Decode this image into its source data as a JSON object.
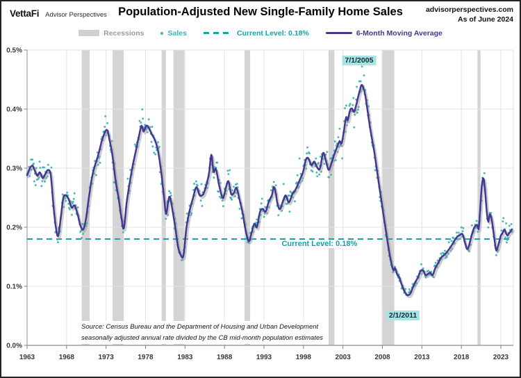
{
  "header": {
    "logo": "VettaFi",
    "logo_sub": "Advisor Perspectives",
    "title": "Population-Adjusted New Single-Family Home Sales",
    "site": "advisorperspectives.com",
    "as_of": "As of June 2024"
  },
  "legend": {
    "recessions": "Recessions",
    "sales": "Sales",
    "current_level": "Current Level: 0.18%",
    "moving_average": "6-Month Moving Average"
  },
  "source": {
    "line1": "Source: Census Bureau and the Department of Housing and Urban Development",
    "line2": "seasonally adjusted annual rate divided by the CB mid-month population estimates"
  },
  "colors": {
    "sales": "#3bb3b6",
    "moving_average": "#43378f",
    "moving_average_shadow": "#9e9e9e",
    "current_level": "#17a2a8",
    "recession": "#d4d4d4",
    "recession_label": "#9b9b9b",
    "grid": "#e3e3e3",
    "axis": "#9f9f9f",
    "tick": "#808080",
    "annotation_bg": "#a9e4e2",
    "annotation_text": "#0b2b3a"
  },
  "chart_data": {
    "type": "scatter",
    "title": "Population-Adjusted New Single-Family Home Sales",
    "xlabel": "",
    "ylabel": "",
    "x_ticks": [
      1963,
      1968,
      1973,
      1978,
      1983,
      1988,
      1993,
      1998,
      2003,
      2008,
      2013,
      2018,
      2023
    ],
    "y_ticks": [
      {
        "v": 0.5,
        "label": "0.5%"
      },
      {
        "v": 0.4,
        "label": "0.4%"
      },
      {
        "v": 0.3,
        "label": "0.3%"
      },
      {
        "v": 0.2,
        "label": "0.2%"
      },
      {
        "v": 0.1,
        "label": "0.1%"
      },
      {
        "v": 0.0,
        "label": "0.0%"
      }
    ],
    "xlim": [
      1963,
      2024.6
    ],
    "ylim_pct": [
      0,
      0.5
    ],
    "grid": true,
    "legend_position": "top",
    "current_level_pct": 0.18,
    "recessions_years": [
      [
        1969.92,
        1970.92
      ],
      [
        1973.83,
        1975.25
      ],
      [
        1980.04,
        1980.58
      ],
      [
        1981.54,
        1982.92
      ],
      [
        1990.54,
        1991.25
      ],
      [
        2001.17,
        2001.92
      ],
      [
        2007.92,
        2009.5
      ],
      [
        2020.04,
        2020.42
      ]
    ],
    "annotations": [
      {
        "label": "7/1/2005",
        "year": 2005.05,
        "value": 0.482
      },
      {
        "label": "2/1/2011",
        "year": 2010.6,
        "value": 0.051
      }
    ],
    "current_level_note": {
      "year": 2000.03,
      "value": 0.172
    },
    "series": [
      {
        "name": "Sales",
        "style": "scatter-monthly",
        "derived": "moving_average_keypoints plus noise",
        "start": 1963.0,
        "end": 2024.45,
        "noise_frac": 0.1,
        "seed": 11
      },
      {
        "name": "6-Month Moving Average",
        "style": "line"
      }
    ],
    "moving_average_keypoints": [
      [
        1963.0,
        0.288
      ],
      [
        1963.35,
        0.3
      ],
      [
        1963.7,
        0.304
      ],
      [
        1964.0,
        0.295
      ],
      [
        1964.3,
        0.287
      ],
      [
        1964.6,
        0.293
      ],
      [
        1965.0,
        0.283
      ],
      [
        1965.3,
        0.29
      ],
      [
        1965.65,
        0.297
      ],
      [
        1966.0,
        0.288
      ],
      [
        1966.35,
        0.235
      ],
      [
        1966.7,
        0.195
      ],
      [
        1966.95,
        0.186
      ],
      [
        1967.3,
        0.22
      ],
      [
        1967.6,
        0.251
      ],
      [
        1968.0,
        0.253
      ],
      [
        1968.3,
        0.246
      ],
      [
        1968.65,
        0.233
      ],
      [
        1969.0,
        0.237
      ],
      [
        1969.4,
        0.222
      ],
      [
        1969.75,
        0.203
      ],
      [
        1970.1,
        0.196
      ],
      [
        1970.45,
        0.214
      ],
      [
        1970.8,
        0.248
      ],
      [
        1971.2,
        0.283
      ],
      [
        1971.6,
        0.305
      ],
      [
        1972.0,
        0.322
      ],
      [
        1972.5,
        0.348
      ],
      [
        1973.1,
        0.365
      ],
      [
        1973.45,
        0.347
      ],
      [
        1973.8,
        0.322
      ],
      [
        1974.2,
        0.28
      ],
      [
        1974.6,
        0.248
      ],
      [
        1975.0,
        0.212
      ],
      [
        1975.25,
        0.198
      ],
      [
        1975.6,
        0.241
      ],
      [
        1976.0,
        0.276
      ],
      [
        1976.4,
        0.306
      ],
      [
        1976.8,
        0.331
      ],
      [
        1977.2,
        0.356
      ],
      [
        1977.5,
        0.372
      ],
      [
        1977.75,
        0.362
      ],
      [
        1978.1,
        0.372
      ],
      [
        1978.45,
        0.367
      ],
      [
        1978.8,
        0.357
      ],
      [
        1979.2,
        0.347
      ],
      [
        1979.6,
        0.328
      ],
      [
        1980.0,
        0.292
      ],
      [
        1980.35,
        0.251
      ],
      [
        1980.6,
        0.222
      ],
      [
        1980.9,
        0.246
      ],
      [
        1981.1,
        0.251
      ],
      [
        1981.45,
        0.226
      ],
      [
        1981.75,
        0.201
      ],
      [
        1982.1,
        0.168
      ],
      [
        1982.45,
        0.153
      ],
      [
        1982.8,
        0.152
      ],
      [
        1983.15,
        0.196
      ],
      [
        1983.5,
        0.224
      ],
      [
        1984.0,
        0.249
      ],
      [
        1984.45,
        0.268
      ],
      [
        1984.85,
        0.254
      ],
      [
        1985.3,
        0.256
      ],
      [
        1985.7,
        0.271
      ],
      [
        1986.05,
        0.292
      ],
      [
        1986.35,
        0.323
      ],
      [
        1986.6,
        0.294
      ],
      [
        1986.9,
        0.299
      ],
      [
        1987.3,
        0.272
      ],
      [
        1987.8,
        0.249
      ],
      [
        1988.15,
        0.266
      ],
      [
        1988.5,
        0.278
      ],
      [
        1988.85,
        0.256
      ],
      [
        1989.2,
        0.258
      ],
      [
        1989.5,
        0.267
      ],
      [
        1989.9,
        0.247
      ],
      [
        1990.3,
        0.224
      ],
      [
        1990.7,
        0.193
      ],
      [
        1991.1,
        0.176
      ],
      [
        1991.45,
        0.192
      ],
      [
        1991.8,
        0.206
      ],
      [
        1992.1,
        0.2
      ],
      [
        1992.5,
        0.226
      ],
      [
        1992.85,
        0.231
      ],
      [
        1993.2,
        0.226
      ],
      [
        1993.6,
        0.243
      ],
      [
        1994.0,
        0.254
      ],
      [
        1994.3,
        0.268
      ],
      [
        1994.75,
        0.238
      ],
      [
        1995.05,
        0.231
      ],
      [
        1995.4,
        0.244
      ],
      [
        1995.75,
        0.254
      ],
      [
        1996.15,
        0.242
      ],
      [
        1996.6,
        0.256
      ],
      [
        1997.0,
        0.264
      ],
      [
        1997.5,
        0.279
      ],
      [
        1997.95,
        0.293
      ],
      [
        1998.3,
        0.314
      ],
      [
        1998.6,
        0.317
      ],
      [
        1999.0,
        0.305
      ],
      [
        1999.35,
        0.311
      ],
      [
        1999.8,
        0.3
      ],
      [
        2000.1,
        0.3
      ],
      [
        2000.5,
        0.326
      ],
      [
        2000.85,
        0.312
      ],
      [
        2001.2,
        0.297
      ],
      [
        2001.6,
        0.311
      ],
      [
        2001.95,
        0.325
      ],
      [
        2002.3,
        0.337
      ],
      [
        2002.6,
        0.346
      ],
      [
        2002.8,
        0.341
      ],
      [
        2003.1,
        0.361
      ],
      [
        2003.4,
        0.386
      ],
      [
        2003.6,
        0.381
      ],
      [
        2003.9,
        0.398
      ],
      [
        2004.15,
        0.401
      ],
      [
        2004.4,
        0.395
      ],
      [
        2004.7,
        0.408
      ],
      [
        2004.95,
        0.422
      ],
      [
        2005.15,
        0.432
      ],
      [
        2005.35,
        0.441
      ],
      [
        2005.55,
        0.437
      ],
      [
        2005.8,
        0.425
      ],
      [
        2006.1,
        0.399
      ],
      [
        2006.4,
        0.371
      ],
      [
        2006.7,
        0.348
      ],
      [
        2007.0,
        0.325
      ],
      [
        2007.3,
        0.297
      ],
      [
        2007.6,
        0.269
      ],
      [
        2007.9,
        0.242
      ],
      [
        2008.2,
        0.215
      ],
      [
        2008.5,
        0.189
      ],
      [
        2008.8,
        0.163
      ],
      [
        2009.1,
        0.141
      ],
      [
        2009.4,
        0.127
      ],
      [
        2009.6,
        0.131
      ],
      [
        2009.85,
        0.121
      ],
      [
        2010.1,
        0.116
      ],
      [
        2010.35,
        0.106
      ],
      [
        2010.7,
        0.094
      ],
      [
        2011.0,
        0.087
      ],
      [
        2011.25,
        0.085
      ],
      [
        2011.55,
        0.088
      ],
      [
        2011.85,
        0.098
      ],
      [
        2012.15,
        0.107
      ],
      [
        2012.5,
        0.115
      ],
      [
        2012.85,
        0.126
      ],
      [
        2013.15,
        0.127
      ],
      [
        2013.45,
        0.119
      ],
      [
        2013.75,
        0.121
      ],
      [
        2014.05,
        0.123
      ],
      [
        2014.35,
        0.119
      ],
      [
        2014.7,
        0.131
      ],
      [
        2015.05,
        0.139
      ],
      [
        2015.4,
        0.148
      ],
      [
        2015.75,
        0.152
      ],
      [
        2016.1,
        0.157
      ],
      [
        2016.45,
        0.163
      ],
      [
        2016.8,
        0.17
      ],
      [
        2017.15,
        0.178
      ],
      [
        2017.5,
        0.184
      ],
      [
        2017.85,
        0.187
      ],
      [
        2018.15,
        0.188
      ],
      [
        2018.5,
        0.172
      ],
      [
        2018.8,
        0.163
      ],
      [
        2019.1,
        0.176
      ],
      [
        2019.45,
        0.193
      ],
      [
        2019.75,
        0.202
      ],
      [
        2020.0,
        0.203
      ],
      [
        2020.2,
        0.198
      ],
      [
        2020.4,
        0.235
      ],
      [
        2020.6,
        0.272
      ],
      [
        2020.8,
        0.283
      ],
      [
        2021.0,
        0.262
      ],
      [
        2021.2,
        0.228
      ],
      [
        2021.4,
        0.209
      ],
      [
        2021.6,
        0.222
      ],
      [
        2021.8,
        0.216
      ],
      [
        2022.0,
        0.198
      ],
      [
        2022.2,
        0.178
      ],
      [
        2022.4,
        0.161
      ],
      [
        2022.6,
        0.166
      ],
      [
        2022.8,
        0.176
      ],
      [
        2023.0,
        0.186
      ],
      [
        2023.2,
        0.19
      ],
      [
        2023.45,
        0.196
      ],
      [
        2023.65,
        0.19
      ],
      [
        2023.85,
        0.186
      ],
      [
        2024.05,
        0.19
      ],
      [
        2024.25,
        0.193
      ],
      [
        2024.45,
        0.197
      ]
    ]
  }
}
